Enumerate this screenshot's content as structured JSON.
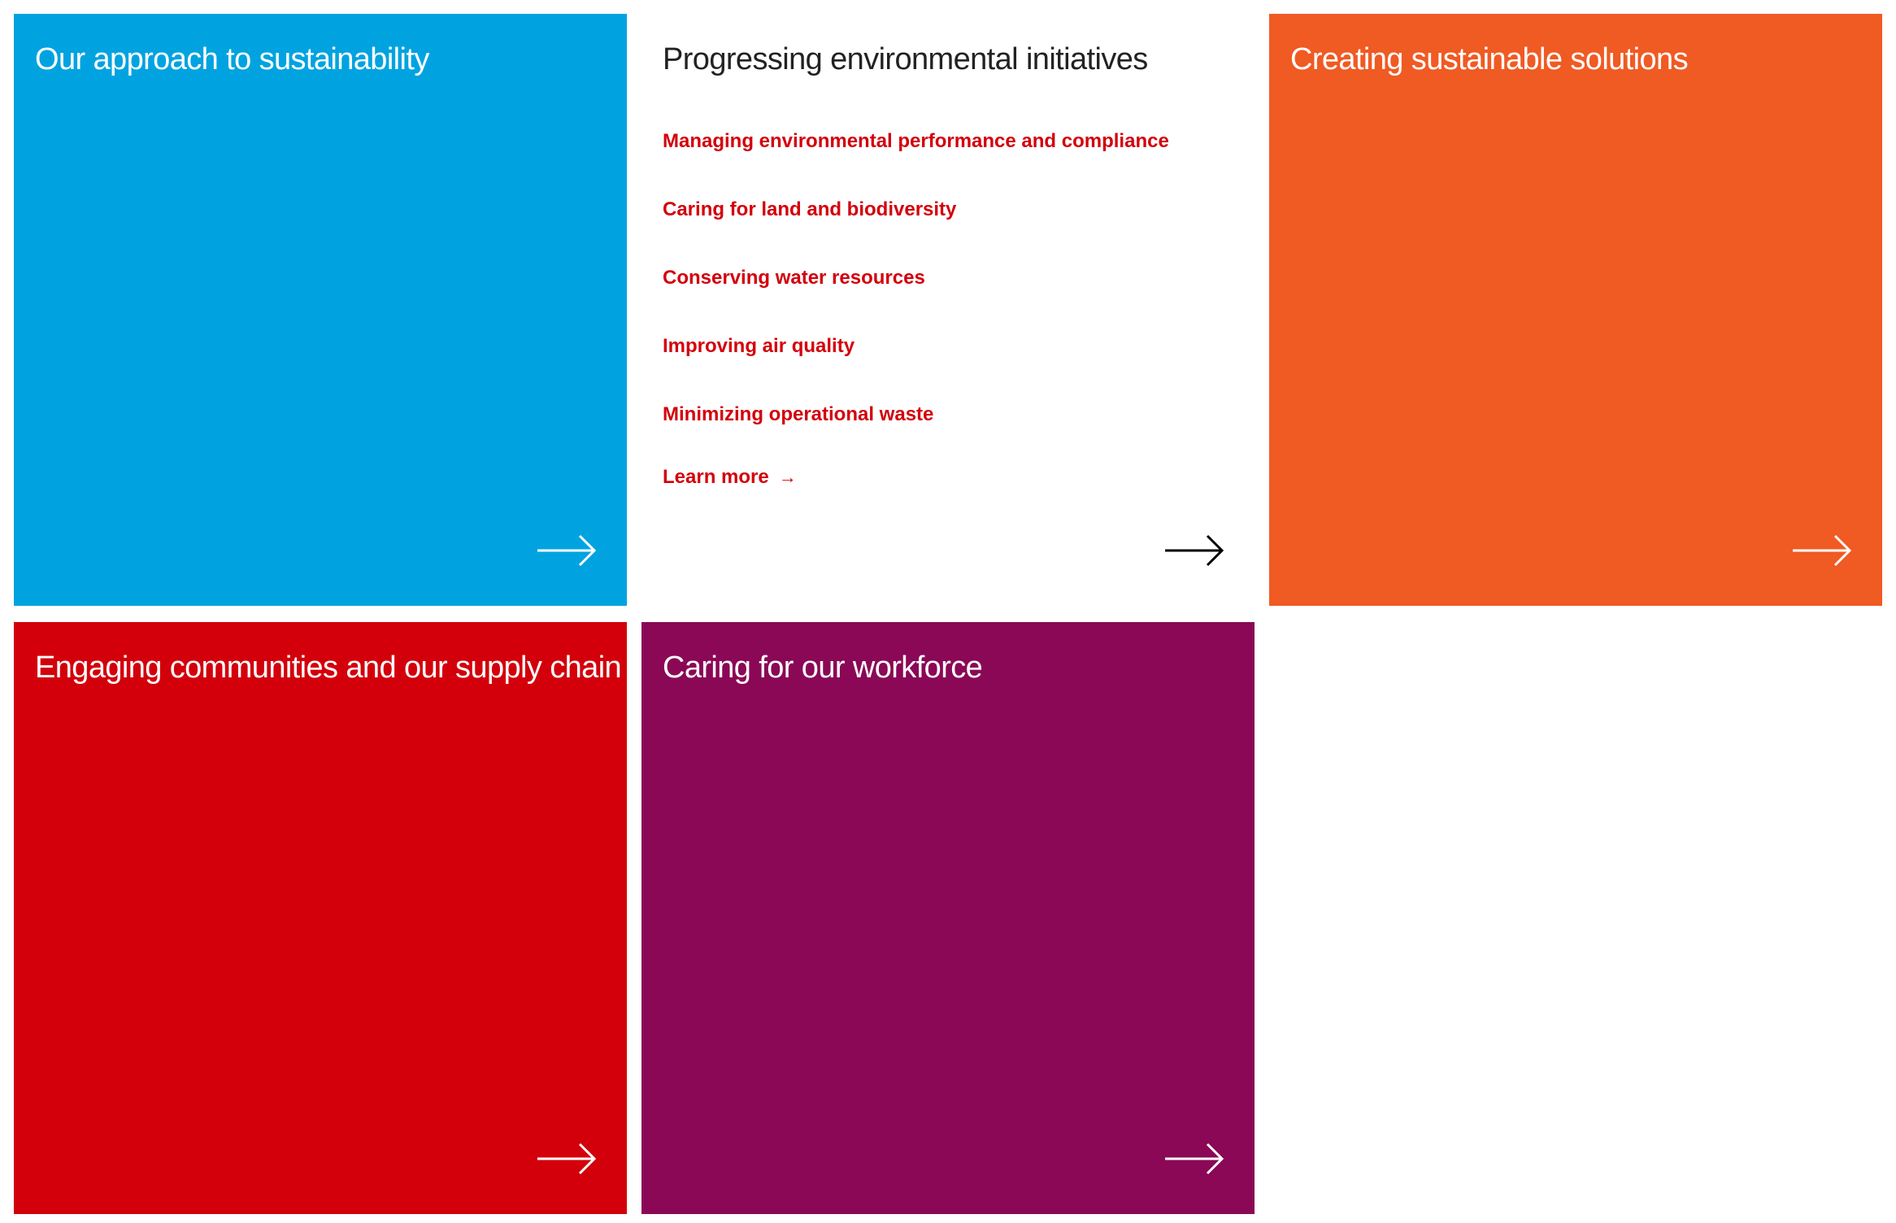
{
  "colors": {
    "blue": "#00a3e0",
    "orange": "#f05a23",
    "red": "#d3000b",
    "purple": "#8a0856",
    "white": "#ffffff",
    "text_dark": "#222222",
    "link_red": "#d3000b"
  },
  "tiles": [
    {
      "title": "Our approach to sustainability",
      "arrow_icon": "arrow-right-icon"
    },
    {
      "title": "Progressing environmental initiatives",
      "arrow_icon": "arrow-right-icon",
      "links": [
        "Managing environmental performance and compliance",
        "Caring for land and biodiversity",
        "Conserving water resources",
        "Improving air quality",
        "Minimizing operational waste"
      ],
      "learn_more": "Learn more",
      "learn_more_arrow": "→"
    },
    {
      "title": "Creating sustainable solutions",
      "arrow_icon": "arrow-right-icon"
    },
    {
      "title": "Engaging communities and our supply chain",
      "arrow_icon": "arrow-right-icon"
    },
    {
      "title": "Caring for our workforce",
      "arrow_icon": "arrow-right-icon"
    }
  ]
}
